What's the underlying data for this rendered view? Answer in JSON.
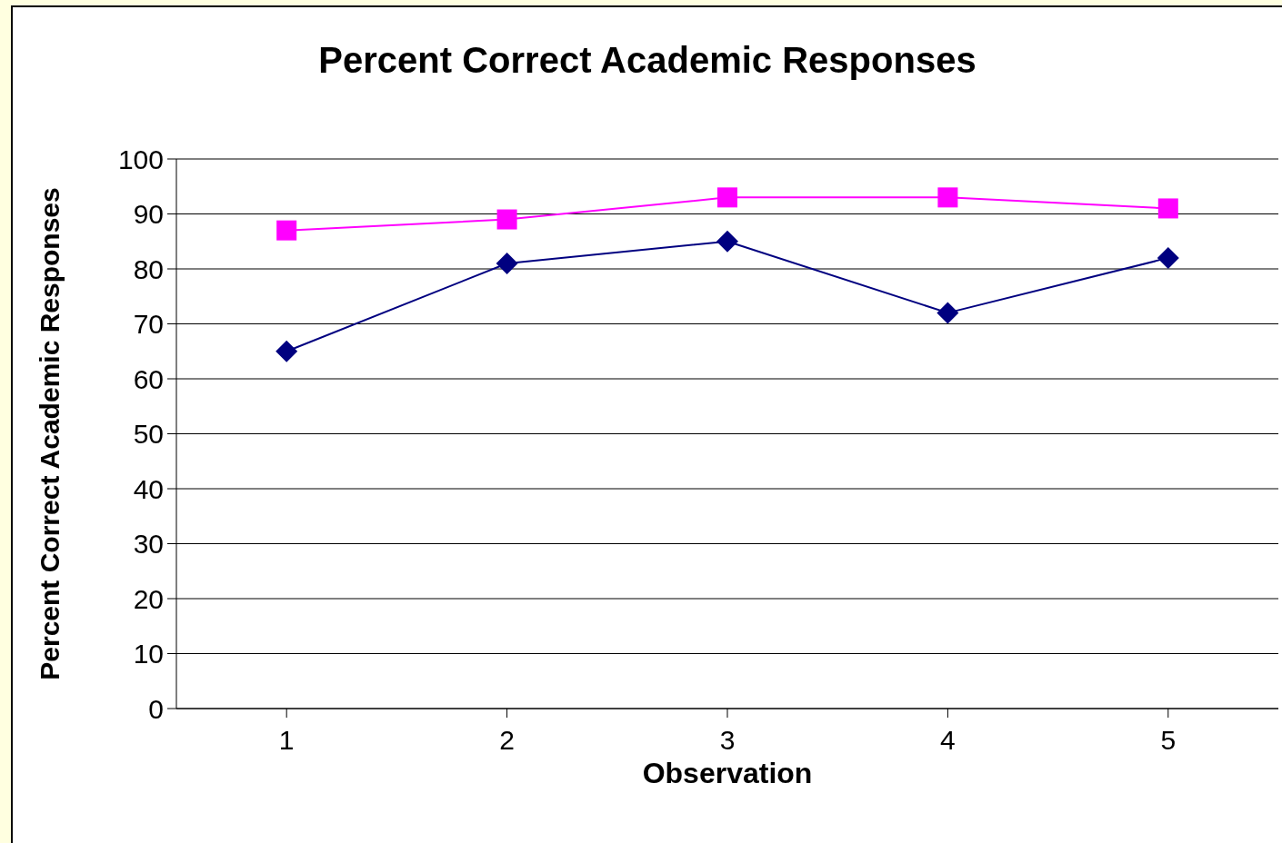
{
  "chart_data": {
    "type": "line",
    "title": "Percent Correct Academic Responses",
    "xlabel": "Observation",
    "ylabel": "Percent Correct Academic Responses",
    "categories": [
      "1",
      "2",
      "3",
      "4",
      "5"
    ],
    "series": [
      {
        "color": "#ff00ff",
        "marker": "square",
        "values": [
          87,
          89,
          93,
          93,
          91
        ]
      },
      {
        "color": "#000080",
        "marker": "diamond",
        "values": [
          65,
          81,
          85,
          72,
          82
        ]
      }
    ],
    "ylim": [
      0,
      100
    ],
    "yticks": [
      0,
      10,
      20,
      30,
      40,
      50,
      60,
      70,
      80,
      90,
      100
    ],
    "grid": "y"
  }
}
